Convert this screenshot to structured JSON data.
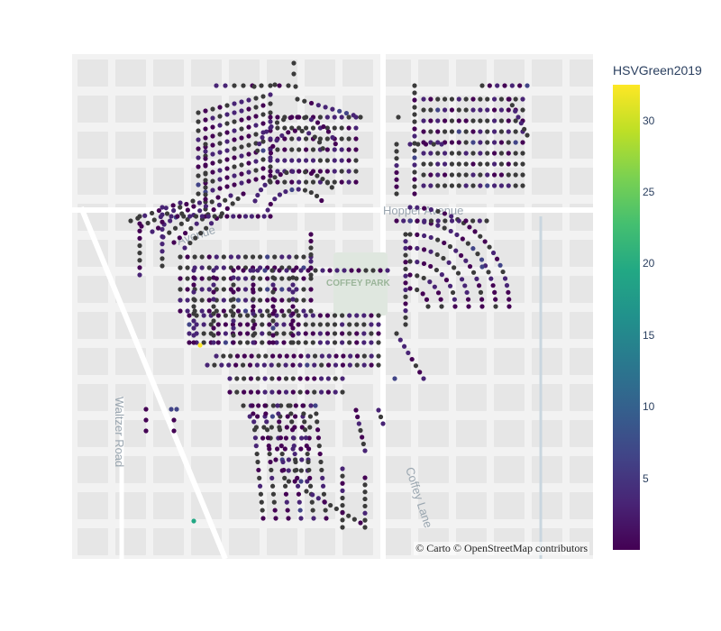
{
  "map": {
    "attribution": "© Carto © OpenStreetMap contributors",
    "labels": {
      "hopper_avenue": "Hopper Avenue",
      "avenue_left": "Avenue",
      "coffey_park": "COFFEY PARK",
      "waltzer_road": "Waltzer Road",
      "coffey_lane": "Coffey Lane"
    },
    "colors": {
      "no_data": "#3b3b3b",
      "low": "#440154",
      "high": "#fde725",
      "background": "#f2f2f2",
      "block": "#e6e6e6",
      "road": "#ffffff",
      "park": "#dfe7df"
    }
  },
  "colorbar": {
    "title": "HSVGreen2019",
    "colorscale": "Viridis",
    "ticks": [
      "5",
      "10",
      "15",
      "20",
      "25",
      "30"
    ],
    "range": [
      0,
      32.5
    ]
  },
  "chart_data": {
    "type": "scatter",
    "title": "",
    "color_variable": "HSVGreen2019",
    "color_range": [
      0,
      32.5
    ],
    "note_values": "Most points have HSVGreen2019 near 0–3; grey points have no value.",
    "notable_points": [
      {
        "name": "high-value point",
        "value": 32
      },
      {
        "name": "mid-value point",
        "value": 18
      },
      {
        "name": "moderate-value point",
        "value": 7
      }
    ]
  }
}
